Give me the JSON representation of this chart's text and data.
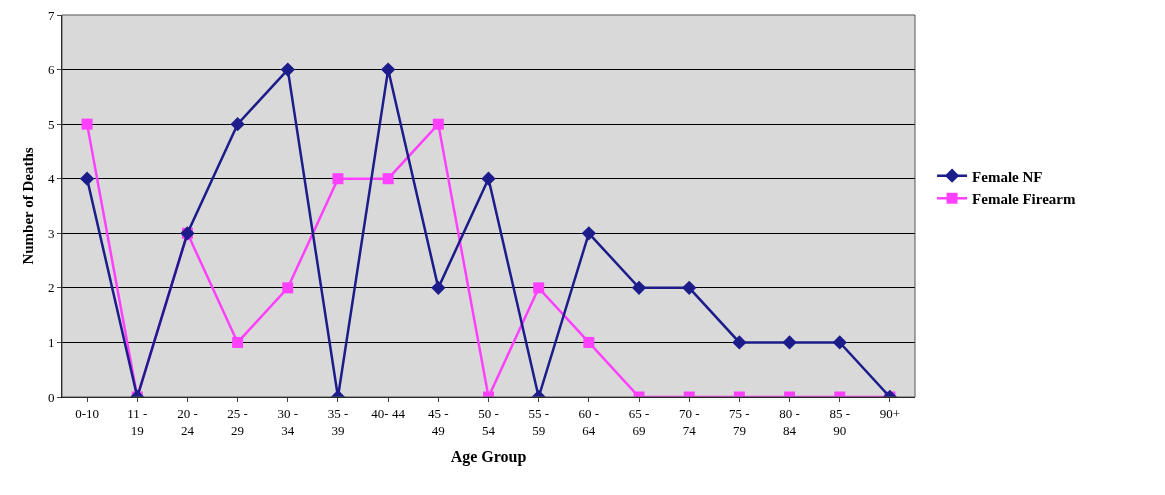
{
  "chart_data": {
    "type": "line",
    "xlabel": "Age Group",
    "ylabel": "Number of Deaths",
    "categories": [
      "0-10",
      "11 - 19",
      "20 - 24",
      "25 - 29",
      "30 - 34",
      "35 - 39",
      "40- 44",
      "45 - 49",
      "50 - 54",
      "55 - 59",
      "60 - 64",
      "65 - 69",
      "70 - 74",
      "75 - 79",
      "80 - 84",
      "85 - 90",
      "90+"
    ],
    "series": [
      {
        "name": "Female NF",
        "color": "#1c1c8a",
        "marker": "diamond",
        "values": [
          4,
          0,
          3,
          5,
          6,
          0,
          6,
          2,
          4,
          0,
          3,
          2,
          2,
          1,
          1,
          1,
          0
        ]
      },
      {
        "name": "Female Firearm",
        "color": "#ff40ff",
        "marker": "square",
        "values": [
          5,
          0,
          3,
          1,
          2,
          4,
          4,
          5,
          0,
          2,
          1,
          0,
          0,
          0,
          0,
          0,
          0
        ]
      }
    ],
    "ylim": [
      0,
      7
    ],
    "yticks": [
      0,
      1,
      2,
      3,
      4,
      5,
      6,
      7
    ],
    "grid": "y",
    "legend": "right",
    "line_style": "solid"
  }
}
